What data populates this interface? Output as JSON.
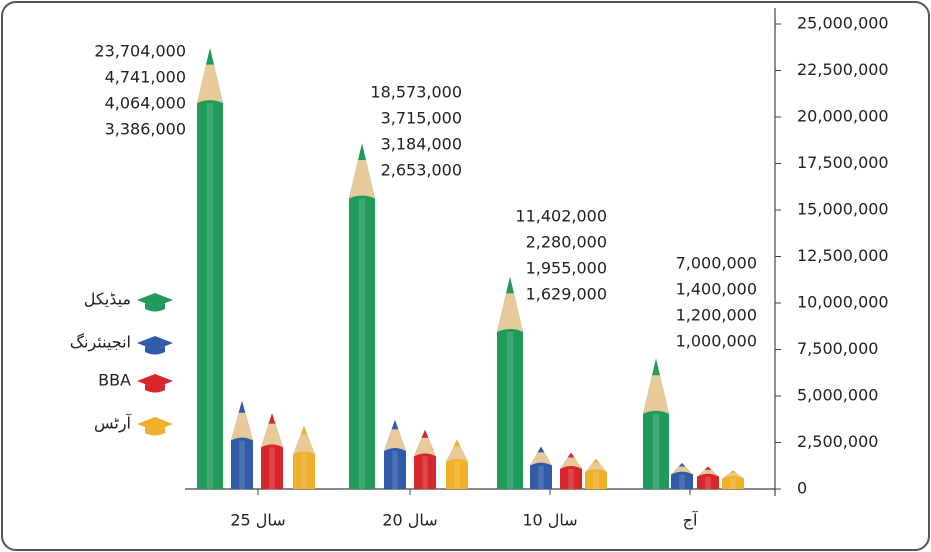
{
  "chart_data": {
    "type": "bar",
    "categories": [
      "25 سال",
      "20 سال",
      "10 سال",
      "آج"
    ],
    "series": [
      {
        "name": "میڈیکل",
        "color": "#1f9a5b",
        "values": [
          23704000,
          18573000,
          11402000,
          7000000
        ],
        "value_labels": [
          "23,704,000",
          "18,573,000",
          "11,402,000",
          "7,000,000"
        ]
      },
      {
        "name": "انجینئرنگ",
        "color": "#2f5ba8",
        "values": [
          4741000,
          3715000,
          2280000,
          1400000
        ],
        "value_labels": [
          "4,741,000",
          "3,715,000",
          "2,280,000",
          "1,400,000"
        ]
      },
      {
        "name": "BBA",
        "color": "#d8262d",
        "values": [
          4064000,
          3184000,
          1955000,
          1200000
        ],
        "value_labels": [
          "4,064,000",
          "3,184,000",
          "1,955,000",
          "1,200,000"
        ]
      },
      {
        "name": "آرٹس",
        "color": "#f0b02a",
        "values": [
          3386000,
          2653000,
          1629000,
          1000000
        ],
        "value_labels": [
          "3,386,000",
          "2,653,000",
          "1,629,000",
          "1,000,000"
        ]
      }
    ],
    "ylim": [
      0,
      25000000
    ],
    "yticks": [
      {
        "value": 0,
        "label": "0"
      },
      {
        "value": 2500000,
        "label": "2,500,000"
      },
      {
        "value": 5000000,
        "label": "5,000,000"
      },
      {
        "value": 7500000,
        "label": "7,500,000"
      },
      {
        "value": 10000000,
        "label": "10,000,000"
      },
      {
        "value": 12500000,
        "label": "12,500,000"
      },
      {
        "value": 15000000,
        "label": "15,000,000"
      },
      {
        "value": 17500000,
        "label": "17,500,000"
      },
      {
        "value": 20000000,
        "label": "20,000,000"
      },
      {
        "value": 22500000,
        "label": "22,500,000"
      },
      {
        "value": 25000000,
        "label": "25,000,000"
      }
    ],
    "legend": "left"
  }
}
